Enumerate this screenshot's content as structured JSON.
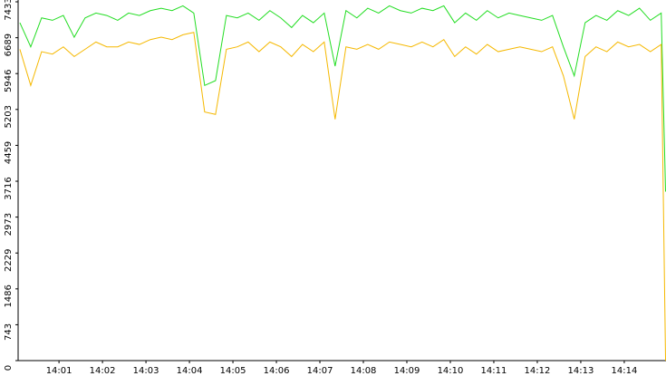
{
  "chart_data": {
    "type": "line",
    "x": [
      0.1,
      0.35,
      0.6,
      0.85,
      1.1,
      1.35,
      1.6,
      1.85,
      2.1,
      2.35,
      2.6,
      2.85,
      3.1,
      3.35,
      3.6,
      3.85,
      4.1,
      4.35,
      4.6,
      4.85,
      5.1,
      5.35,
      5.6,
      5.85,
      6.1,
      6.35,
      6.6,
      6.85,
      7.1,
      7.35,
      7.6,
      7.85,
      8.1,
      8.35,
      8.6,
      8.85,
      9.1,
      9.35,
      9.6,
      9.85,
      10.1,
      10.35,
      10.6,
      10.85,
      11.1,
      11.35,
      11.6,
      11.85,
      12.1,
      12.35,
      12.6,
      12.85,
      13.1,
      13.35,
      13.6,
      13.85,
      14.1,
      14.35,
      14.6,
      14.85,
      14.95
    ],
    "series": [
      {
        "color": "#22dd22",
        "values": [
          7000,
          6500,
          7100,
          7050,
          7150,
          6700,
          7100,
          7200,
          7150,
          7050,
          7200,
          7150,
          7250,
          7300,
          7250,
          7350,
          7200,
          5700,
          5800,
          7150,
          7100,
          7200,
          7050,
          7250,
          7100,
          6900,
          7150,
          7000,
          7200,
          6100,
          7250,
          7100,
          7300,
          7200,
          7350,
          7250,
          7200,
          7300,
          7250,
          7350,
          7000,
          7200,
          7050,
          7250,
          7100,
          7200,
          7150,
          7100,
          7050,
          7150,
          6500,
          5900,
          7000,
          7150,
          7050,
          7250,
          7150,
          7300,
          7050,
          7200,
          3500
        ]
      },
      {
        "color": "#f5b800",
        "values": [
          6450,
          5700,
          6400,
          6350,
          6500,
          6300,
          6450,
          6600,
          6500,
          6500,
          6600,
          6550,
          6650,
          6700,
          6650,
          6750,
          6800,
          5150,
          5100,
          6450,
          6500,
          6600,
          6400,
          6600,
          6500,
          6300,
          6550,
          6400,
          6600,
          5000,
          6500,
          6450,
          6550,
          6450,
          6600,
          6550,
          6500,
          6600,
          6500,
          6650,
          6300,
          6500,
          6350,
          6550,
          6400,
          6450,
          6500,
          6450,
          6400,
          6500,
          5900,
          5000,
          6300,
          6500,
          6400,
          6600,
          6500,
          6550,
          6400,
          6550,
          0
        ]
      }
    ],
    "xlim": [
      0.06,
      14.96
    ],
    "xticks": [
      {
        "value": 1,
        "label": "14:01"
      },
      {
        "value": 2,
        "label": "14:02"
      },
      {
        "value": 3,
        "label": "14:03"
      },
      {
        "value": 4,
        "label": "14:04"
      },
      {
        "value": 5,
        "label": "14:05"
      },
      {
        "value": 6,
        "label": "14:06"
      },
      {
        "value": 7,
        "label": "14:07"
      },
      {
        "value": 8,
        "label": "14:08"
      },
      {
        "value": 9,
        "label": "14:09"
      },
      {
        "value": 10,
        "label": "14:10"
      },
      {
        "value": 11,
        "label": "14:11"
      },
      {
        "value": 12,
        "label": "14:12"
      },
      {
        "value": 13,
        "label": "14:13"
      },
      {
        "value": 14,
        "label": "14:14"
      }
    ],
    "ylim": [
      0,
      7433
    ],
    "yticks": [
      0,
      743,
      1486,
      2229,
      2973,
      3716,
      4459,
      5203,
      5946,
      6689,
      7433
    ]
  }
}
